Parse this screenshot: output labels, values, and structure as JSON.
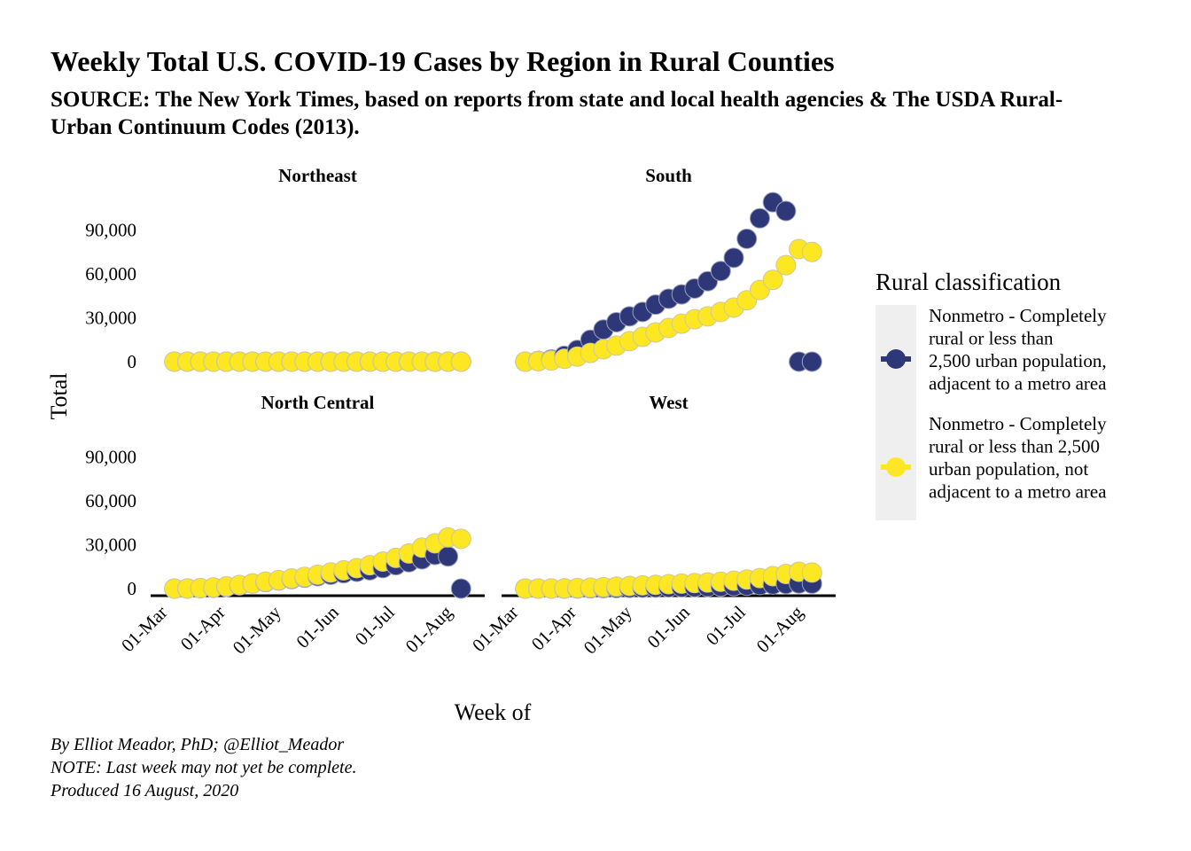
{
  "title": "Weekly Total U.S. COVID-19 Cases by Region in Rural Counties",
  "subtitle": "SOURCE: The New York Times, based on reports from state and local health agencies & The USDA Rural-Urban Continuum Codes (2013).",
  "caption": [
    "By Elliot Meador, PhD; @Elliot_Meador",
    "NOTE: Last week may not yet be complete.",
    "Produced 16 August, 2020"
  ],
  "colors": {
    "adjacent": "#2e3777",
    "not_adjacent": "#fde723",
    "legend_bg": "#efefef"
  },
  "chart_data": {
    "type": "scatter",
    "xlabel": "Week of",
    "ylabel": "Total",
    "x_ticks": [
      "01-Mar",
      "01-Apr",
      "01-May",
      "01-Jun",
      "01-Jul",
      "01-Aug"
    ],
    "y_ticks": [
      "0",
      "30,000",
      "60,000",
      "90,000"
    ],
    "ylim": [
      0,
      110000
    ],
    "xlim": [
      "2020-03-01",
      "2020-08-16"
    ],
    "legend_title": "Rural classification",
    "legend_position": "right",
    "series_names": [
      "Nonmetro - Completely rural or less than 2,500 urban population, adjacent to a metro area",
      "Nonmetro - Completely rural or less than 2,500 urban population, not adjacent to a metro area"
    ],
    "facets": [
      {
        "name": "Northeast",
        "dates": [
          "2020-03-08",
          "2020-03-15",
          "2020-03-22",
          "2020-03-29",
          "2020-04-05",
          "2020-04-12",
          "2020-04-19",
          "2020-04-26",
          "2020-05-03",
          "2020-05-10",
          "2020-05-17",
          "2020-05-24",
          "2020-05-31",
          "2020-06-07",
          "2020-06-14",
          "2020-06-21",
          "2020-06-28",
          "2020-07-05",
          "2020-07-12",
          "2020-07-19",
          "2020-07-26",
          "2020-08-02",
          "2020-08-09"
        ],
        "adjacent": [
          0,
          0,
          0,
          0,
          0,
          0,
          0,
          0,
          0,
          0,
          0,
          0,
          0,
          0,
          0,
          0,
          0,
          0,
          0,
          0,
          0,
          0,
          0
        ],
        "not_adjacent": [
          0,
          0,
          0,
          0,
          0,
          0,
          0,
          0,
          0,
          0,
          0,
          0,
          0,
          0,
          0,
          0,
          0,
          0,
          0,
          0,
          0,
          0,
          0
        ]
      },
      {
        "name": "South",
        "dates": [
          "2020-03-08",
          "2020-03-15",
          "2020-03-22",
          "2020-03-29",
          "2020-04-05",
          "2020-04-12",
          "2020-04-19",
          "2020-04-26",
          "2020-05-03",
          "2020-05-10",
          "2020-05-17",
          "2020-05-24",
          "2020-05-31",
          "2020-06-07",
          "2020-06-14",
          "2020-06-21",
          "2020-06-28",
          "2020-07-05",
          "2020-07-12",
          "2020-07-19",
          "2020-07-26",
          "2020-08-02",
          "2020-08-09"
        ],
        "adjacent": [
          0,
          500,
          1500,
          4000,
          8000,
          15000,
          22000,
          27000,
          31000,
          34000,
          39000,
          43000,
          46000,
          50000,
          55000,
          62000,
          71000,
          84000,
          98000,
          109000,
          103000,
          0,
          0
        ],
        "not_adjacent": [
          0,
          300,
          800,
          2000,
          3500,
          6000,
          8500,
          11000,
          14000,
          17000,
          20000,
          23000,
          26000,
          29000,
          31000,
          34000,
          37000,
          42000,
          49000,
          56000,
          66000,
          77000,
          75000
        ]
      },
      {
        "name": "North Central",
        "dates": [
          "2020-03-08",
          "2020-03-15",
          "2020-03-22",
          "2020-03-29",
          "2020-04-05",
          "2020-04-12",
          "2020-04-19",
          "2020-04-26",
          "2020-05-03",
          "2020-05-10",
          "2020-05-17",
          "2020-05-24",
          "2020-05-31",
          "2020-06-07",
          "2020-06-14",
          "2020-06-21",
          "2020-06-28",
          "2020-07-05",
          "2020-07-12",
          "2020-07-19",
          "2020-07-26",
          "2020-08-02",
          "2020-08-09"
        ],
        "adjacent": [
          0,
          100,
          300,
          600,
          1200,
          2200,
          3500,
          4500,
          5500,
          6500,
          7500,
          8500,
          9500,
          10500,
          11500,
          12500,
          14000,
          16000,
          18000,
          20000,
          23000,
          22000,
          0
        ],
        "not_adjacent": [
          0,
          100,
          400,
          800,
          1500,
          2500,
          3500,
          4800,
          5800,
          7000,
          8000,
          9500,
          11000,
          12500,
          14000,
          16000,
          18500,
          21000,
          24000,
          28000,
          31000,
          35000,
          34000
        ]
      },
      {
        "name": "West",
        "dates": [
          "2020-03-08",
          "2020-03-15",
          "2020-03-22",
          "2020-03-29",
          "2020-04-05",
          "2020-04-12",
          "2020-04-19",
          "2020-04-26",
          "2020-05-03",
          "2020-05-10",
          "2020-05-17",
          "2020-05-24",
          "2020-05-31",
          "2020-06-07",
          "2020-06-14",
          "2020-06-21",
          "2020-06-28",
          "2020-07-05",
          "2020-07-12",
          "2020-07-19",
          "2020-07-26",
          "2020-08-02",
          "2020-08-09"
        ],
        "adjacent": [
          0,
          0,
          0,
          0,
          100,
          200,
          300,
          400,
          500,
          600,
          700,
          800,
          900,
          1000,
          1200,
          1400,
          1700,
          2000,
          2400,
          2800,
          3200,
          3500,
          3400
        ],
        "not_adjacent": [
          0,
          50,
          100,
          200,
          400,
          700,
          1000,
          1400,
          1800,
          2200,
          2600,
          3000,
          3400,
          3800,
          4200,
          4700,
          5400,
          6200,
          7200,
          8500,
          10000,
          11500,
          11000
        ]
      }
    ]
  }
}
